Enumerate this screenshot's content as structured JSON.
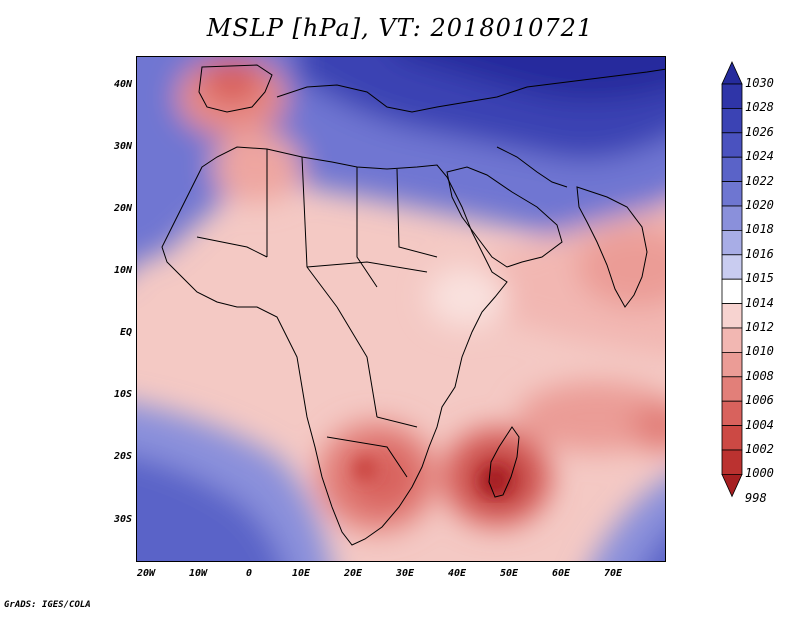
{
  "title": "MSLP [hPa], VT: 2018010721",
  "credit": "GrADS: IGES/COLA",
  "map": {
    "variable": "Mean sea level pressure",
    "units": "hPa",
    "valid_time": "2018010721",
    "lat_labels": [
      "40N",
      "30N",
      "20N",
      "10N",
      "EQ",
      "10S",
      "20S",
      "30S"
    ],
    "lon_labels": [
      "20W",
      "10W",
      "0",
      "10E",
      "20E",
      "30E",
      "40E",
      "50E",
      "60E",
      "70E"
    ],
    "features": {
      "high_pressure_north": "Mediterranean / Middle East ~1026-1030",
      "low_madagascar": "~998-1002",
      "low_southern_africa": "~1004-1006"
    }
  },
  "colorbar": {
    "labels": [
      "1030",
      "1028",
      "1026",
      "1024",
      "1022",
      "1020",
      "1018",
      "1016",
      "1015",
      "1014",
      "1012",
      "1010",
      "1008",
      "1006",
      "1004",
      "1002",
      "1000",
      "998"
    ],
    "colors": [
      "#252b9c",
      "#2f35a8",
      "#3b43b4",
      "#4a52bf",
      "#5a63c8",
      "#6e76d1",
      "#8a90db",
      "#a8ade6",
      "#c9ccf0",
      "#ffffff",
      "#f7d3d0",
      "#f2b7b2",
      "#eb9c96",
      "#e27f79",
      "#d8625d",
      "#cc4944",
      "#bb3230",
      "#a61f21"
    ]
  }
}
